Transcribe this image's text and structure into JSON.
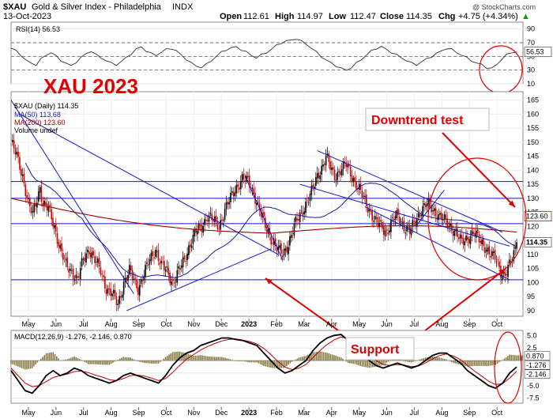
{
  "header": {
    "symbol": "$XAU",
    "title": "Gold & Silver Index - Philadelphia",
    "exchange": "INDX",
    "date": "13-Oct-2023",
    "open_label": "Open",
    "open": "112.61",
    "high_label": "High",
    "high": "114.97",
    "low_label": "Low",
    "low": "112.47",
    "close_label": "Close",
    "close": "114.35",
    "chg_label": "Chg",
    "chg": "+4.75 (+4.34%)",
    "arrow": "▲"
  },
  "watermark": "@ StockCharts.com",
  "annotations": {
    "main_title": "XAU 2023",
    "downtrend": "Downtrend test",
    "support": "Support"
  },
  "colors": {
    "price_up": "#000000",
    "price_down": "#d00000",
    "ma50": "#1a1aa0",
    "ma200": "#a00000",
    "trendline": "#1515d0",
    "annotation": "#e00000",
    "macd_hist": "#8a7a45"
  },
  "chart_data": [
    {
      "panel": "rsi",
      "type": "line",
      "legend": "RSI(14) 56.53",
      "last_value": "56.53",
      "ylim": [
        10,
        100
      ],
      "y_ticks": [
        "90",
        "70",
        "50",
        "30",
        "10"
      ],
      "reference_lines": [
        70,
        50,
        30
      ],
      "grid": true,
      "values": [
        62,
        58,
        52,
        44,
        40,
        38,
        46,
        52,
        56,
        50,
        44,
        40,
        36,
        42,
        48,
        54,
        58,
        52,
        48,
        44,
        40,
        38,
        42,
        48,
        54,
        60,
        64,
        58,
        54,
        52,
        56,
        60,
        62,
        58,
        52,
        46,
        40,
        36,
        34,
        38,
        44,
        50,
        56,
        60,
        62,
        64,
        60,
        56,
        52,
        48,
        52,
        56,
        60,
        66,
        70,
        72,
        74,
        76,
        72,
        68,
        62,
        56,
        50,
        44,
        40,
        36,
        32,
        30,
        34,
        40,
        46,
        52,
        58,
        62,
        64,
        60,
        56,
        52,
        48,
        44,
        40,
        38,
        42,
        46,
        50,
        54,
        58,
        62,
        60,
        56,
        52,
        48,
        44,
        40,
        38,
        34,
        32,
        38,
        46,
        52,
        56,
        56.53
      ]
    },
    {
      "panel": "price",
      "type": "candlestick",
      "legend": [
        "$XAU (Daily) 114.35",
        "MA(50) 113.68",
        "MA(200) 123.60",
        "Volume undef"
      ],
      "ylim": [
        88,
        168
      ],
      "y_ticks": [
        "165",
        "160",
        "155",
        "150",
        "145",
        "140",
        "135",
        "130",
        "125",
        "120",
        "115",
        "110",
        "105",
        "100",
        "95",
        "90"
      ],
      "last_price": "114.35",
      "ma200_last": "123.60",
      "x_ticks": [
        "May",
        "Jun",
        "Jul",
        "Aug",
        "Sep",
        "Oct",
        "Nov",
        "Dec",
        "2023",
        "Feb",
        "Mar",
        "Apr",
        "May",
        "Jun",
        "Jul",
        "Aug",
        "Sep",
        "Oct"
      ],
      "horizontal_levels": [
        136,
        130,
        121,
        101
      ],
      "price_path": [
        [
          0,
          150
        ],
        [
          4,
          145
        ],
        [
          8,
          138
        ],
        [
          12,
          128
        ],
        [
          15,
          124
        ],
        [
          18,
          130
        ],
        [
          20,
          134
        ],
        [
          22,
          128
        ],
        [
          26,
          126
        ],
        [
          30,
          120
        ],
        [
          34,
          112
        ],
        [
          38,
          106
        ],
        [
          42,
          104
        ],
        [
          46,
          101
        ],
        [
          50,
          108
        ],
        [
          54,
          112
        ],
        [
          58,
          108
        ],
        [
          62,
          104
        ],
        [
          66,
          98
        ],
        [
          70,
          96
        ],
        [
          74,
          92
        ],
        [
          78,
          100
        ],
        [
          82,
          104
        ],
        [
          86,
          100
        ],
        [
          88,
          98
        ],
        [
          92,
          103
        ],
        [
          96,
          108
        ],
        [
          100,
          112
        ],
        [
          104,
          106
        ],
        [
          108,
          104
        ],
        [
          112,
          100
        ],
        [
          116,
          104
        ],
        [
          120,
          108
        ],
        [
          124,
          114
        ],
        [
          128,
          118
        ],
        [
          132,
          120
        ],
        [
          136,
          124
        ],
        [
          140,
          122
        ],
        [
          144,
          120
        ],
        [
          148,
          126
        ],
        [
          152,
          130
        ],
        [
          156,
          134
        ],
        [
          160,
          137
        ],
        [
          164,
          136
        ],
        [
          168,
          132
        ],
        [
          172,
          126
        ],
        [
          176,
          120
        ],
        [
          180,
          116
        ],
        [
          184,
          112
        ],
        [
          188,
          110
        ],
        [
          192,
          114
        ],
        [
          196,
          120
        ],
        [
          200,
          124
        ],
        [
          204,
          128
        ],
        [
          208,
          132
        ],
        [
          212,
          138
        ],
        [
          216,
          142
        ],
        [
          218,
          145
        ],
        [
          221,
          141
        ],
        [
          224,
          138
        ],
        [
          228,
          140
        ],
        [
          232,
          142
        ],
        [
          236,
          138
        ],
        [
          240,
          134
        ],
        [
          244,
          130
        ],
        [
          248,
          126
        ],
        [
          252,
          122
        ],
        [
          256,
          120
        ],
        [
          260,
          118
        ],
        [
          264,
          122
        ],
        [
          268,
          124
        ],
        [
          272,
          120
        ],
        [
          276,
          118
        ],
        [
          280,
          122
        ],
        [
          284,
          126
        ],
        [
          288,
          128
        ],
        [
          292,
          126
        ],
        [
          296,
          124
        ],
        [
          300,
          122
        ],
        [
          304,
          120
        ],
        [
          308,
          118
        ],
        [
          312,
          114
        ],
        [
          316,
          116
        ],
        [
          320,
          118
        ],
        [
          324,
          115
        ],
        [
          328,
          113
        ],
        [
          332,
          110
        ],
        [
          336,
          108
        ],
        [
          339,
          104
        ],
        [
          342,
          103
        ],
        [
          345,
          106
        ],
        [
          348,
          110
        ],
        [
          350,
          114.35
        ]
      ]
    },
    {
      "panel": "macd",
      "type": "line",
      "legend": "MACD(12,26,9) -1.276, -2.146, 0.870",
      "values_printed": [
        "-1.276",
        "-2.146",
        "0.870"
      ],
      "ylim": [
        -8.5,
        6
      ],
      "y_ticks": [
        "5.0",
        "2.5",
        "0.0",
        "-2.5",
        "-5.0",
        "-7.5"
      ],
      "x_ticks": [
        "May",
        "Jun",
        "Jul",
        "Aug",
        "Sep",
        "Oct",
        "Nov",
        "Dec",
        "2023",
        "Feb",
        "Mar",
        "Apr",
        "May",
        "Jun",
        "Jul",
        "Aug",
        "Sep",
        "Oct"
      ],
      "macd": [
        -2,
        -4,
        -6,
        -6.5,
        -5,
        -3,
        -2,
        -3,
        -2.5,
        -1.5,
        -2,
        -3,
        -3.5,
        -4,
        -4.5,
        -4,
        -3,
        -2.5,
        -3,
        -3.5,
        -4,
        -4.5,
        -3,
        -1,
        0.5,
        1.5,
        2,
        3,
        3.5,
        4,
        4.5,
        4.5,
        4.2,
        4,
        3.5,
        3,
        1.5,
        0,
        -1.5,
        -2.5,
        -2,
        -1,
        0,
        2,
        3.5,
        4.5,
        5,
        5.2,
        4,
        3,
        1.5,
        0,
        -1,
        -1.5,
        -1,
        -0.5,
        -1,
        -1.5,
        -1,
        0,
        1,
        1.5,
        1.5,
        0.5,
        -0.5,
        -2,
        -3,
        -4,
        -5,
        -5.5,
        -4.5,
        -2.5,
        -1.276
      ],
      "signal": [
        -1.5,
        -3,
        -4.5,
        -5.2,
        -5,
        -4.2,
        -3.4,
        -3,
        -2.7,
        -2.2,
        -2.1,
        -2.4,
        -2.9,
        -3.3,
        -3.8,
        -4,
        -3.6,
        -3,
        -2.9,
        -3.1,
        -3.5,
        -4,
        -3.6,
        -2.4,
        -1,
        0.3,
        1.2,
        2.1,
        2.8,
        3.4,
        3.9,
        4.2,
        4.3,
        4.1,
        3.8,
        3.3,
        2.4,
        1.2,
        -0.2,
        -1.3,
        -1.8,
        -1.5,
        -0.8,
        0.6,
        2,
        3.2,
        4.1,
        4.7,
        4.4,
        3.6,
        2.5,
        1.2,
        0,
        -0.8,
        -1,
        -0.8,
        -0.9,
        -1.2,
        -1.1,
        -0.5,
        0.3,
        1,
        1.3,
        0.9,
        0.2,
        -1,
        -2.1,
        -3.1,
        -4.1,
        -4.8,
        -4.6,
        -3.5,
        -2.146
      ],
      "grid": true
    }
  ]
}
